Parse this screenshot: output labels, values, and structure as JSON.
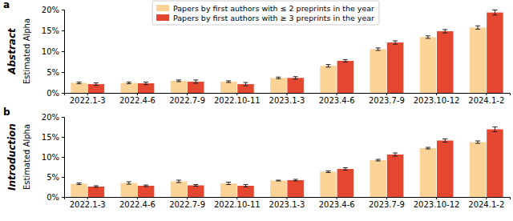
{
  "chart_data": [
    {
      "type": "bar",
      "subtitle": "a",
      "title": "Abstract",
      "y_label": "Estimated Alpha",
      "categories": [
        "2022.1-3",
        "2022.4-6",
        "2022.7-9",
        "2022.10-11",
        "2023.1-3",
        "2023.4-6",
        "2023.7-9",
        "2023.10-12",
        "2024.1-2"
      ],
      "series": [
        {
          "name": "Papers by first authors with ≤ 2 preprints in the year",
          "color": "#fbd397",
          "values": [
            2.4,
            2.4,
            2.9,
            2.7,
            3.6,
            6.5,
            10.5,
            13.4,
            15.7
          ],
          "errors": [
            0.2,
            0.2,
            0.2,
            0.2,
            0.2,
            0.3,
            0.3,
            0.3,
            0.4
          ]
        },
        {
          "name": "Papers by first authors with ≥ 3 preprints in the year",
          "color": "#e5462f",
          "values": [
            2.1,
            2.3,
            2.7,
            2.1,
            3.6,
            7.7,
            12.1,
            14.8,
            19.3
          ],
          "errors": [
            0.3,
            0.3,
            0.4,
            0.4,
            0.3,
            0.3,
            0.4,
            0.4,
            0.6
          ]
        }
      ],
      "ylim": [
        0,
        20
      ],
      "yticks": [
        {
          "value": 0,
          "label": "0%"
        },
        {
          "value": 5,
          "label": "5%"
        },
        {
          "value": 10,
          "label": "10%"
        },
        {
          "value": 15,
          "label": "15%"
        },
        {
          "value": 20,
          "label": "20%"
        }
      ],
      "legend": "top",
      "grid": false
    },
    {
      "type": "bar",
      "subtitle": "b",
      "title": "Introduction",
      "y_label": "Estimated Alpha",
      "categories": [
        "2022.1-3",
        "2022.4-6",
        "2022.7-9",
        "2022.10-11",
        "2023.1-3",
        "2023.4-6",
        "2023.7-9",
        "2023.10-12",
        "2024.1-2"
      ],
      "series": [
        {
          "color": "#fbd397",
          "values": [
            3.3,
            3.5,
            3.9,
            3.4,
            4.1,
            6.3,
            9.2,
            12.2,
            13.7
          ],
          "errors": [
            0.2,
            0.3,
            0.3,
            0.3,
            0.1,
            0.2,
            0.2,
            0.2,
            0.3
          ]
        },
        {
          "color": "#e5462f",
          "values": [
            2.6,
            2.8,
            2.9,
            2.8,
            4.2,
            7.0,
            10.6,
            14.1,
            16.9
          ],
          "errors": [
            0.2,
            0.2,
            0.2,
            0.3,
            0.2,
            0.3,
            0.4,
            0.4,
            0.6
          ]
        }
      ],
      "ylim": [
        0,
        20
      ],
      "yticks": [
        {
          "value": 0,
          "label": "0%"
        },
        {
          "value": 5,
          "label": "5%"
        },
        {
          "value": 10,
          "label": "10%"
        },
        {
          "value": 15,
          "label": "15%"
        },
        {
          "value": 20,
          "label": "20%"
        }
      ],
      "grid": false
    }
  ]
}
